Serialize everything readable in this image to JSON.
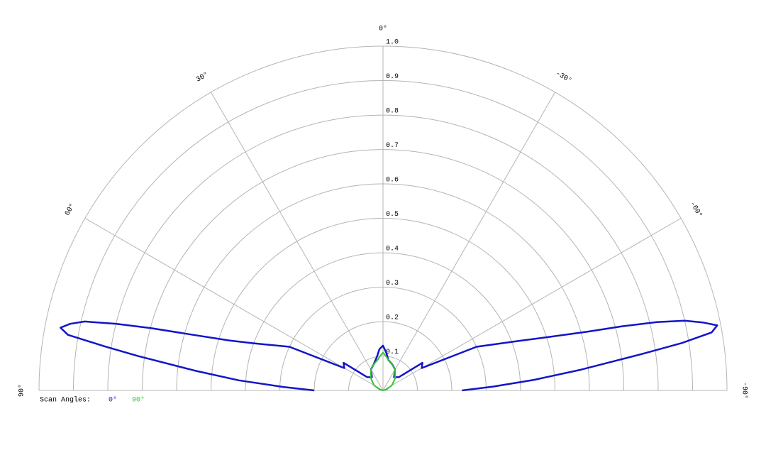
{
  "chart_data": {
    "type": "polar",
    "legend_title": "Scan Angles:",
    "rlim": [
      0,
      1
    ],
    "rticks": [
      0.1,
      0.2,
      0.3,
      0.4,
      0.5,
      0.6,
      0.7,
      0.8,
      0.9,
      {
        "value": 1,
        "label": "1.0"
      }
    ],
    "angleticks": [
      {
        "value": 90,
        "label": "90°"
      },
      {
        "value": 60,
        "label": "60°"
      },
      {
        "value": 30,
        "label": "30°"
      },
      {
        "value": 0,
        "label": "0°"
      },
      {
        "value": -30,
        "label": "-30°"
      },
      {
        "value": -60,
        "label": "-60°"
      },
      {
        "value": -90,
        "label": "-90°"
      }
    ],
    "grid": true,
    "series": [
      {
        "name": "0°",
        "color": "#1414c8",
        "angles": [
          90,
          88,
          86,
          84,
          82,
          81,
          80,
          79,
          78,
          77,
          76,
          75,
          74,
          72,
          70,
          65,
          60,
          55,
          50,
          40,
          30,
          20,
          10,
          5,
          0,
          -5,
          -10,
          -20,
          -30,
          -40,
          -50,
          -55,
          -60,
          -65,
          -70,
          -72,
          -74,
          -75,
          -76,
          -77,
          -78,
          -79,
          -80,
          -81,
          -82,
          -84,
          -86,
          -88,
          -90
        ],
        "values": [
          0.2,
          0.29,
          0.42,
          0.55,
          0.72,
          0.82,
          0.93,
          0.955,
          0.93,
          0.89,
          0.8,
          0.7,
          0.6,
          0.47,
          0.4,
          0.3,
          0.13,
          0.14,
          0.06,
          0.05,
          0.07,
          0.08,
          0.1,
          0.12,
          0.13,
          0.11,
          0.09,
          0.08,
          0.07,
          0.05,
          0.06,
          0.14,
          0.13,
          0.3,
          0.42,
          0.5,
          0.62,
          0.72,
          0.82,
          0.9,
          0.95,
          0.99,
          0.97,
          0.88,
          0.76,
          0.58,
          0.44,
          0.32,
          0.23
        ]
      },
      {
        "name": "90°",
        "color": "#33c433",
        "angles": [
          90,
          75,
          60,
          45,
          30,
          20,
          10,
          5,
          0,
          -5,
          -10,
          -20,
          -30,
          -45,
          -60,
          -75,
          -90
        ],
        "values": [
          0,
          0.01,
          0.03,
          0.05,
          0.07,
          0.08,
          0.09,
          0.1,
          0.11,
          0.1,
          0.09,
          0.08,
          0.07,
          0.05,
          0.03,
          0.01,
          0
        ]
      }
    ]
  }
}
